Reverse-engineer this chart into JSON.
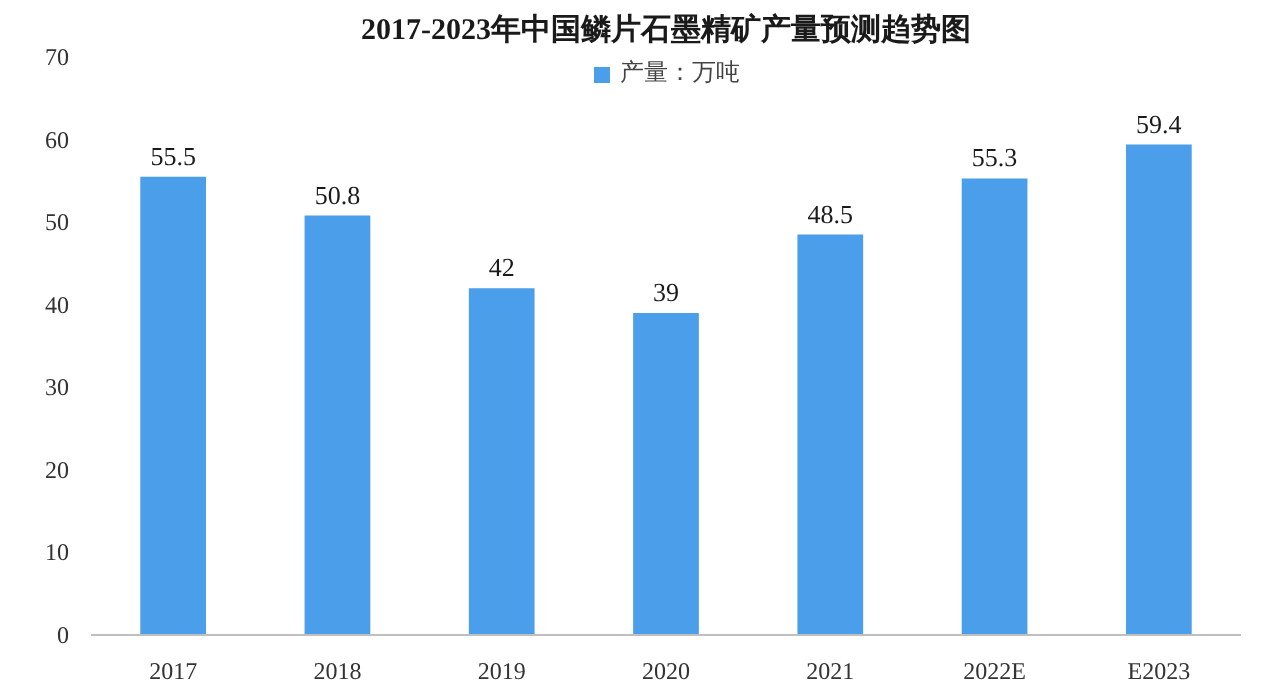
{
  "chart_data": {
    "type": "bar",
    "title": "2017-2023年中国鳞片石墨精矿产量预测趋势图",
    "categories": [
      "2017",
      "2018",
      "2019",
      "2020",
      "2021",
      "2022E",
      "E2023"
    ],
    "series": [
      {
        "name": "产量：万吨",
        "color": "#4a9eea",
        "values": [
          55.5,
          50.8,
          42,
          39,
          48.5,
          55.3,
          59.4
        ]
      }
    ],
    "ylim": [
      0,
      70
    ],
    "yticks": [
      0,
      10,
      20,
      30,
      40,
      50,
      60,
      70
    ],
    "grid": false,
    "legend": "top",
    "data_labels": true
  }
}
